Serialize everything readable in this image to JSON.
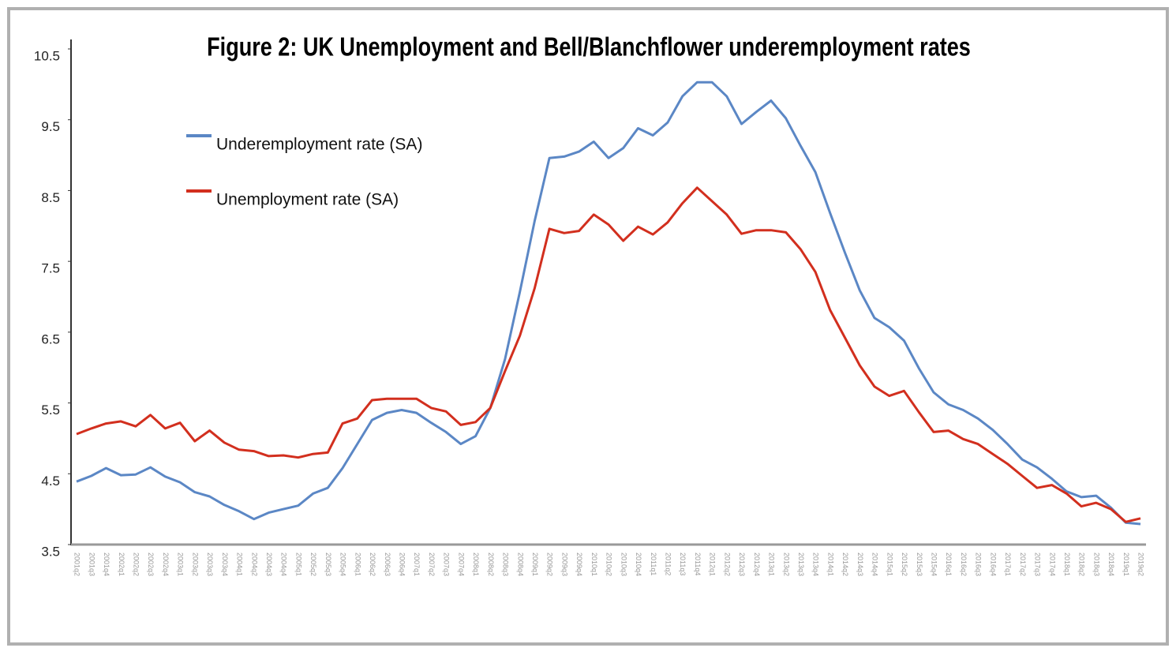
{
  "chart_data": {
    "type": "line",
    "title": "Figure 2: UK Unemployment and Bell/Blanchflower underemployment rates",
    "categories": [
      "2001q2",
      "2001q3",
      "2001q4",
      "2002q1",
      "2002q2",
      "2002q3",
      "2002q4",
      "2003q1",
      "2003q2",
      "2003q3",
      "2003q4",
      "2004q1",
      "2004q2",
      "2004q3",
      "2004q4",
      "2005q1",
      "2005q2",
      "2005q3",
      "2005q4",
      "2006q1",
      "2006q2",
      "2006q3",
      "2006q4",
      "2007q1",
      "2007q2",
      "2007q3",
      "2007q4",
      "2008q1",
      "2008q2",
      "2008q3",
      "2008q4",
      "2009q1",
      "2009q2",
      "2009q3",
      "2009q4",
      "2010q1",
      "2010q2",
      "2010q3",
      "2010q4",
      "2011q1",
      "2011q2",
      "2011q3",
      "2011q4",
      "2012q1",
      "2012q2",
      "2012q3",
      "2012q4",
      "2013q1",
      "2013q2",
      "2013q3",
      "2013q4",
      "2014q1",
      "2014q2",
      "2014q3",
      "2014q4",
      "2015q1",
      "2015q2",
      "2015q3",
      "2015q4",
      "2016q1",
      "2016q2",
      "2016q3",
      "2016q4",
      "2017q1",
      "2017q2",
      "2017q3",
      "2017q4",
      "2018q1",
      "2018q2",
      "2018q3",
      "2018q4",
      "2019q1",
      "2019q2"
    ],
    "series": [
      {
        "name": "Underemployment rate (SA)",
        "color": "#5b87c5",
        "values": [
          4.39,
          4.47,
          4.58,
          4.48,
          4.49,
          4.59,
          4.46,
          4.38,
          4.24,
          4.18,
          4.06,
          3.97,
          3.86,
          3.95,
          4.0,
          4.05,
          4.22,
          4.3,
          4.58,
          4.92,
          5.26,
          5.36,
          5.4,
          5.36,
          5.22,
          5.09,
          4.92,
          5.03,
          5.43,
          6.12,
          7.07,
          8.07,
          8.96,
          8.98,
          9.05,
          9.19,
          8.96,
          9.1,
          9.38,
          9.28,
          9.46,
          9.83,
          10.03,
          10.03,
          9.83,
          9.44,
          9.61,
          9.77,
          9.52,
          9.13,
          8.76,
          8.18,
          7.62,
          7.09,
          6.7,
          6.57,
          6.38,
          5.99,
          5.65,
          5.48,
          5.4,
          5.28,
          5.12,
          4.92,
          4.7,
          4.59,
          4.43,
          4.25,
          4.17,
          4.19,
          4.02,
          3.81,
          3.79
        ]
      },
      {
        "name": "Unemployment rate (SA)",
        "color": "#d22f1e",
        "values": [
          5.06,
          5.14,
          5.21,
          5.24,
          5.17,
          5.33,
          5.14,
          5.22,
          4.96,
          5.11,
          4.94,
          4.84,
          4.82,
          4.75,
          4.76,
          4.73,
          4.78,
          4.8,
          5.21,
          5.28,
          5.54,
          5.56,
          5.56,
          5.56,
          5.43,
          5.38,
          5.19,
          5.23,
          5.43,
          5.95,
          6.45,
          7.12,
          7.96,
          7.9,
          7.93,
          8.16,
          8.02,
          7.79,
          7.99,
          7.88,
          8.05,
          8.32,
          8.54,
          8.35,
          8.16,
          7.89,
          7.94,
          7.94,
          7.91,
          7.67,
          7.35,
          6.81,
          6.42,
          6.03,
          5.73,
          5.6,
          5.67,
          5.37,
          5.09,
          5.11,
          4.99,
          4.92,
          4.78,
          4.64,
          4.47,
          4.3,
          4.34,
          4.22,
          4.04,
          4.09,
          4.0,
          3.82,
          3.87
        ]
      }
    ],
    "ylim": [
      3.5,
      10.5
    ],
    "yticks": [
      3.5,
      4.5,
      5.5,
      6.5,
      7.5,
      8.5,
      9.5,
      10.5
    ]
  }
}
